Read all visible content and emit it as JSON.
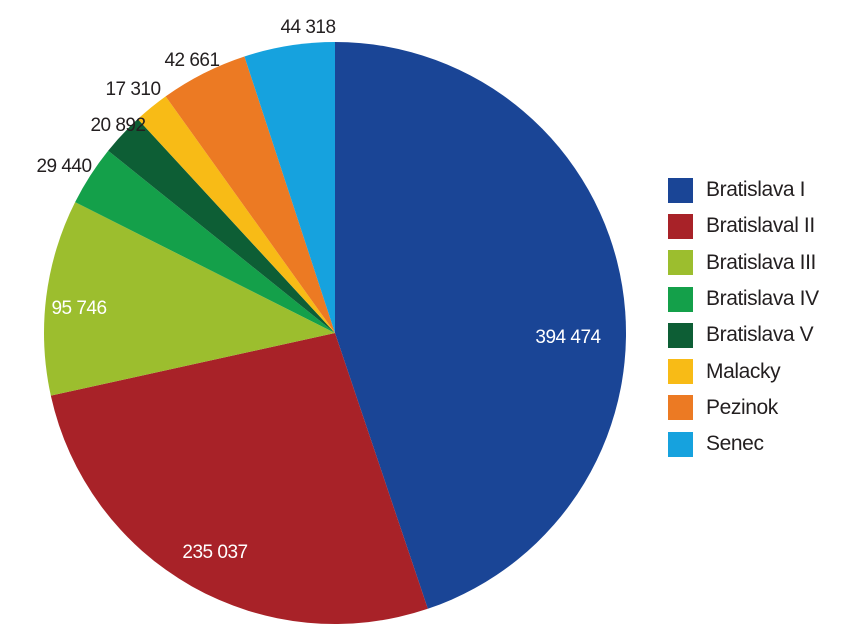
{
  "chart_data": {
    "type": "pie",
    "title": "",
    "start_angle_deg": 0,
    "direction": "clockwise",
    "legend_position": "right",
    "slices": [
      {
        "name": "Bratislava I",
        "value": 394474,
        "label": "394 474",
        "color": "#1a4596",
        "label_inside": true,
        "label_color": "#ffffff"
      },
      {
        "name": "Bratislaval II",
        "value": 235037,
        "label": "235 037",
        "color": "#a82228",
        "label_inside": true,
        "label_color": "#ffffff"
      },
      {
        "name": "Bratislava III",
        "value": 95746,
        "label": "95 746",
        "color": "#9cbe2e",
        "label_inside": true,
        "label_color": "#ffffff"
      },
      {
        "name": "Bratislava IV",
        "value": 29440,
        "label": "29 440",
        "color": "#14a04a",
        "label_inside": false,
        "label_color": "#231f20"
      },
      {
        "name": "Bratislava V",
        "value": 20892,
        "label": "20 892",
        "color": "#0d5e35",
        "label_inside": false,
        "label_color": "#231f20"
      },
      {
        "name": "Malacky",
        "value": 17310,
        "label": "17 310",
        "color": "#f8bb16",
        "label_inside": false,
        "label_color": "#231f20"
      },
      {
        "name": "Pezinok",
        "value": 42661,
        "label": "42 661",
        "color": "#ec7a23",
        "label_inside": false,
        "label_color": "#231f20"
      },
      {
        "name": "Senec",
        "value": 44318,
        "label": "44 318",
        "color": "#16a2de",
        "label_inside": false,
        "label_color": "#231f20"
      }
    ]
  }
}
